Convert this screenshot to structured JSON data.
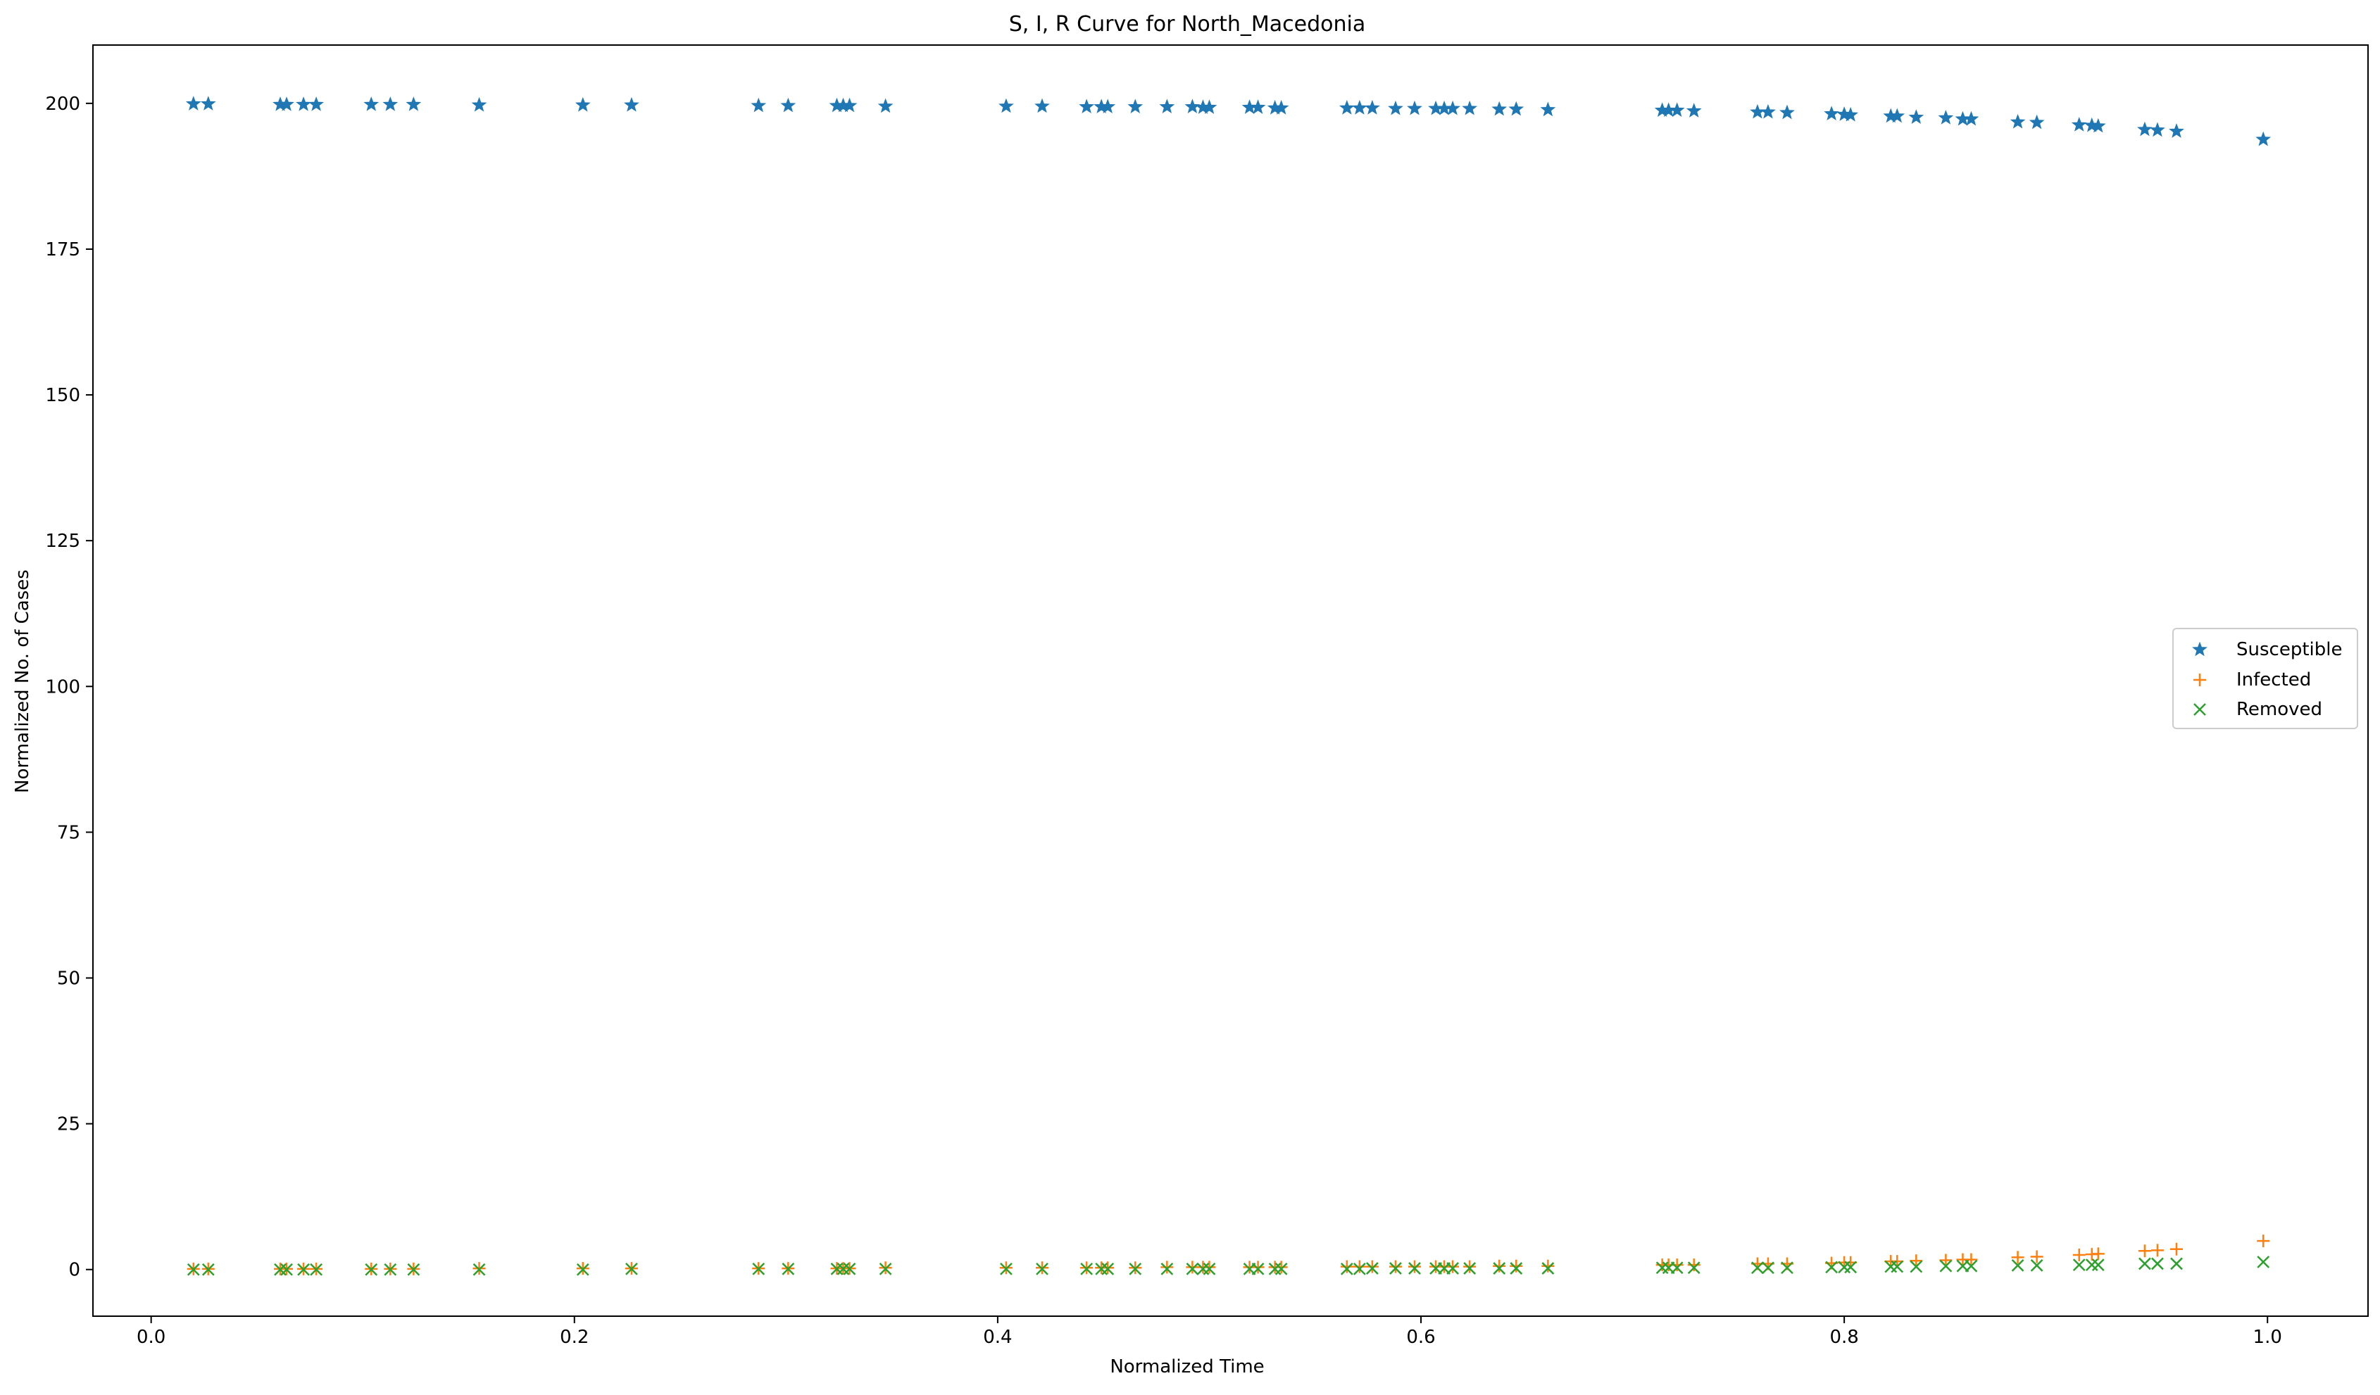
{
  "chart_data": {
    "type": "scatter",
    "title": "S, I, R Curve for North_Macedonia",
    "xlabel": "Normalized Time",
    "ylabel": "Normalized No. of Cases",
    "xlim": [
      -0.0275,
      1.0475
    ],
    "ylim": [
      -8.0,
      210.0
    ],
    "xticks": [
      0.0,
      0.2,
      0.4,
      0.6,
      0.8,
      1.0
    ],
    "xtick_labels": [
      "0.0",
      "0.2",
      "0.4",
      "0.6",
      "0.8",
      "1.0"
    ],
    "yticks": [
      0,
      25,
      50,
      75,
      100,
      125,
      150,
      175,
      200
    ],
    "ytick_labels": [
      "0",
      "25",
      "50",
      "75",
      "100",
      "125",
      "150",
      "175",
      "200"
    ],
    "grid": false,
    "legend_position": "center-right",
    "x": [
      0.02,
      0.027,
      0.061,
      0.064,
      0.072,
      0.078,
      0.104,
      0.113,
      0.124,
      0.155,
      0.204,
      0.227,
      0.287,
      0.301,
      0.324,
      0.327,
      0.33,
      0.347,
      0.404,
      0.421,
      0.442,
      0.449,
      0.452,
      0.465,
      0.48,
      0.492,
      0.497,
      0.5,
      0.519,
      0.523,
      0.531,
      0.534,
      0.565,
      0.571,
      0.577,
      0.588,
      0.597,
      0.607,
      0.611,
      0.615,
      0.623,
      0.637,
      0.645,
      0.66,
      0.714,
      0.717,
      0.721,
      0.729,
      0.759,
      0.764,
      0.773,
      0.794,
      0.8,
      0.803,
      0.822,
      0.825,
      0.834,
      0.848,
      0.856,
      0.86,
      0.882,
      0.891,
      0.911,
      0.917,
      0.92,
      0.942,
      0.948,
      0.957,
      0.998
    ],
    "series": [
      {
        "name": "Susceptible",
        "marker": "star",
        "color": "#1f77b4",
        "values": [
          199.9,
          199.9,
          199.8,
          199.8,
          199.8,
          199.8,
          199.8,
          199.8,
          199.8,
          199.7,
          199.7,
          199.7,
          199.6,
          199.6,
          199.6,
          199.6,
          199.6,
          199.5,
          199.5,
          199.5,
          199.4,
          199.4,
          199.4,
          199.4,
          199.4,
          199.4,
          199.3,
          199.3,
          199.3,
          199.3,
          199.2,
          199.2,
          199.2,
          199.2,
          199.2,
          199.1,
          199.1,
          199.1,
          199.1,
          199.1,
          199.1,
          199.0,
          199.0,
          198.9,
          198.8,
          198.8,
          198.8,
          198.7,
          198.5,
          198.5,
          198.4,
          198.2,
          198.1,
          198.0,
          197.8,
          197.8,
          197.6,
          197.5,
          197.3,
          197.3,
          196.8,
          196.7,
          196.3,
          196.2,
          196.1,
          195.5,
          195.4,
          195.2,
          193.8
        ]
      },
      {
        "name": "Infected",
        "marker": "plus",
        "color": "#ff7f0e",
        "values": [
          0.1,
          0.1,
          0.1,
          0.1,
          0.1,
          0.1,
          0.1,
          0.1,
          0.1,
          0.2,
          0.2,
          0.2,
          0.2,
          0.2,
          0.2,
          0.2,
          0.2,
          0.3,
          0.3,
          0.3,
          0.3,
          0.3,
          0.3,
          0.3,
          0.4,
          0.4,
          0.4,
          0.4,
          0.4,
          0.4,
          0.4,
          0.4,
          0.5,
          0.5,
          0.5,
          0.5,
          0.5,
          0.5,
          0.5,
          0.5,
          0.5,
          0.6,
          0.6,
          0.6,
          0.8,
          0.8,
          0.8,
          0.8,
          1.0,
          1.0,
          1.0,
          1.1,
          1.2,
          1.2,
          1.4,
          1.4,
          1.5,
          1.6,
          1.7,
          1.7,
          2.1,
          2.2,
          2.5,
          2.6,
          2.7,
          3.2,
          3.3,
          3.5,
          4.9
        ]
      },
      {
        "name": "Removed",
        "marker": "x",
        "color": "#2ca02c",
        "values": [
          0.0,
          0.0,
          0.0,
          0.0,
          0.0,
          0.0,
          0.0,
          0.0,
          0.0,
          0.0,
          0.0,
          0.1,
          0.1,
          0.1,
          0.1,
          0.1,
          0.1,
          0.1,
          0.1,
          0.1,
          0.1,
          0.1,
          0.1,
          0.1,
          0.1,
          0.1,
          0.1,
          0.1,
          0.1,
          0.1,
          0.1,
          0.1,
          0.1,
          0.1,
          0.2,
          0.2,
          0.2,
          0.2,
          0.2,
          0.2,
          0.2,
          0.2,
          0.2,
          0.2,
          0.3,
          0.3,
          0.3,
          0.3,
          0.3,
          0.3,
          0.3,
          0.4,
          0.4,
          0.4,
          0.5,
          0.5,
          0.5,
          0.6,
          0.6,
          0.6,
          0.7,
          0.7,
          0.8,
          0.8,
          0.8,
          1.0,
          1.0,
          1.0,
          1.3
        ]
      }
    ]
  }
}
